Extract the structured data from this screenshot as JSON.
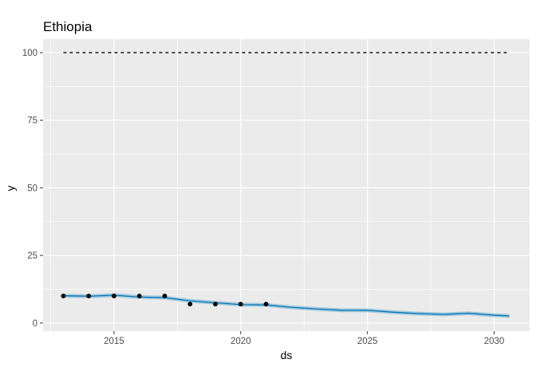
{
  "chart_data": {
    "type": "line",
    "title": "Ethiopia",
    "xlabel": "ds",
    "ylabel": "y",
    "xlim": [
      2012.2,
      2031.4
    ],
    "ylim": [
      -3,
      105
    ],
    "x_ticks": [
      2015,
      2020,
      2025,
      2030
    ],
    "x_tick_labels": [
      "2015",
      "2020",
      "2025",
      "2030"
    ],
    "y_ticks": [
      0,
      25,
      50,
      75,
      100
    ],
    "y_tick_labels": [
      "0",
      "25",
      "50",
      "75",
      "100"
    ],
    "grid": true,
    "panel_background": "#ebebeb",
    "colors": {
      "forecast_line": "#0072b2",
      "uncertainty_band": "#7fb9d8",
      "points": "#000000",
      "cap_line": "#000000"
    },
    "cap": {
      "value": 100,
      "x_range": [
        2013,
        2030.6
      ]
    },
    "observed": [
      {
        "x": 2013.0,
        "y": 10.0
      },
      {
        "x": 2014.0,
        "y": 10.0
      },
      {
        "x": 2015.0,
        "y": 10.0
      },
      {
        "x": 2016.0,
        "y": 10.0
      },
      {
        "x": 2017.0,
        "y": 10.0
      },
      {
        "x": 2018.0,
        "y": 7.0
      },
      {
        "x": 2019.0,
        "y": 7.0
      },
      {
        "x": 2020.0,
        "y": 7.0
      },
      {
        "x": 2021.0,
        "y": 7.0
      }
    ],
    "forecast": [
      {
        "x": 2013.0,
        "y": 10.1
      },
      {
        "x": 2014.0,
        "y": 9.9
      },
      {
        "x": 2015.0,
        "y": 10.3
      },
      {
        "x": 2016.0,
        "y": 9.6
      },
      {
        "x": 2017.0,
        "y": 9.4
      },
      {
        "x": 2018.0,
        "y": 8.2
      },
      {
        "x": 2019.0,
        "y": 7.5
      },
      {
        "x": 2020.0,
        "y": 6.8
      },
      {
        "x": 2021.0,
        "y": 6.7
      },
      {
        "x": 2022.0,
        "y": 5.8
      },
      {
        "x": 2023.0,
        "y": 5.2
      },
      {
        "x": 2024.0,
        "y": 4.7
      },
      {
        "x": 2025.0,
        "y": 4.7
      },
      {
        "x": 2026.0,
        "y": 4.0
      },
      {
        "x": 2027.0,
        "y": 3.5
      },
      {
        "x": 2028.0,
        "y": 3.2
      },
      {
        "x": 2029.0,
        "y": 3.6
      },
      {
        "x": 2030.0,
        "y": 2.9
      },
      {
        "x": 2030.6,
        "y": 2.6
      }
    ],
    "band_halfwidth": 0.7
  }
}
